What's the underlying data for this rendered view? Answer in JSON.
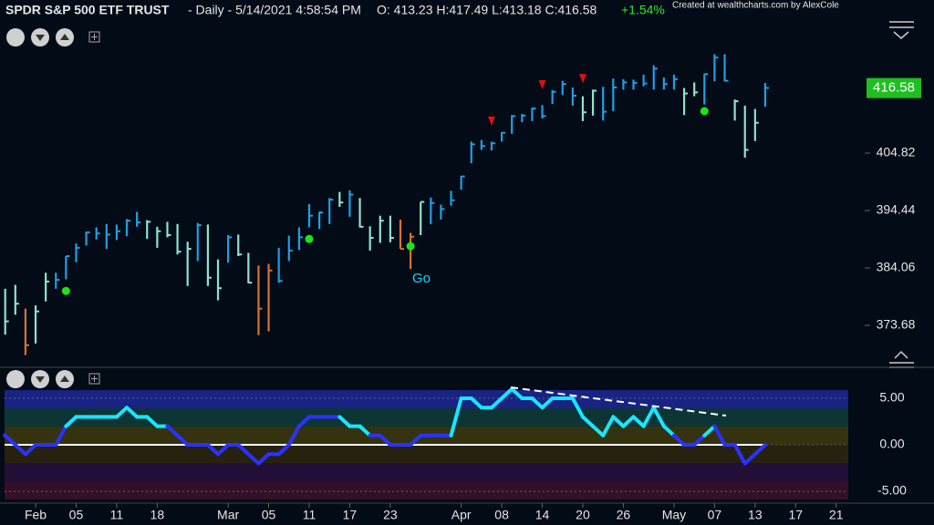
{
  "chart_data": [
    {
      "type": "ohlc",
      "title": "SPDR S&P 500 ETF TRUST",
      "subtitle": "- Daily - 5/14/2021 4:58:54 PM",
      "quote": "O: 413.23 H:417.49 L:413.18 C:416.58",
      "change": "+1.54%",
      "credit": "Created at wealthcharts.com by AlexCole",
      "annotation": "Go",
      "high": [
        380.3,
        381.0,
        376.7,
        377.3,
        383.2,
        383.2,
        386.2,
        388.5,
        390.6,
        391.4,
        392.0,
        391.9,
        392.9,
        394.2,
        392.7,
        391.5,
        392.4,
        392.0,
        388.8,
        392.2,
        391.9,
        385.6,
        390.0,
        390.1,
        386.8,
        384.5,
        384.8,
        387.7,
        389.9,
        391.4,
        395.6,
        394.2,
        396.7,
        397.8,
        398.1,
        396.7,
        391.6,
        393.5,
        393.5,
        392.8,
        390.4,
        396.0,
        396.8,
        395.5,
        398.0,
        400.7,
        406.9,
        407.2,
        406.9,
        408.6,
        411.7,
        411.9,
        413.0,
        413.5,
        416.2,
        417.9,
        416.7,
        415.1,
        416.3,
        416.8,
        418.3,
        418.2,
        418.1,
        419.0,
        420.7,
        418.5,
        419.0,
        416.6,
        417.6,
        419.2,
        422.7,
        422.7,
        414.5,
        413.4,
        412.8,
        417.5
      ],
      "low": [
        372.0,
        375.6,
        368.3,
        370.4,
        378.0,
        380.3,
        382.0,
        385.1,
        388.1,
        389.2,
        387.5,
        389.1,
        389.8,
        391.5,
        389.3,
        387.7,
        389.6,
        386.5,
        380.8,
        385.3,
        380.8,
        378.2,
        385.0,
        386.2,
        381.3,
        371.9,
        372.6,
        381.4,
        385.3,
        387.3,
        391.4,
        391.1,
        392.0,
        395.1,
        393.3,
        391.4,
        387.2,
        388.6,
        388.7,
        387.5,
        383.9,
        390.0,
        392.0,
        392.8,
        395.3,
        398.2,
        403.0,
        405.4,
        405.3,
        406.9,
        408.3,
        410.4,
        410.6,
        411.1,
        413.7,
        415.3,
        413.4,
        410.6,
        411.6,
        410.7,
        412.4,
        416.3,
        416.3,
        416.9,
        416.3,
        416.3,
        416.3,
        411.7,
        415.1,
        413.6,
        417.8,
        417.8,
        410.7,
        404.0,
        407.0,
        413.2
      ],
      "close": [
        374.4,
        377.6,
        370.1,
        376.2,
        381.6,
        381.9,
        386.2,
        387.7,
        390.5,
        390.3,
        390.1,
        390.7,
        392.6,
        392.3,
        392.4,
        390.7,
        390.0,
        387.0,
        387.5,
        391.8,
        382.3,
        380.4,
        389.6,
        386.5,
        381.4,
        376.7,
        383.6,
        381.7,
        387.2,
        389.6,
        393.5,
        394.1,
        396.4,
        395.9,
        397.3,
        391.5,
        389.5,
        392.6,
        389.5,
        387.5,
        389.7,
        396.0,
        395.8,
        394.7,
        396.3,
        400.6,
        406.4,
        406.1,
        406.6,
        408.5,
        411.5,
        411.6,
        412.9,
        411.5,
        415.9,
        417.3,
        415.2,
        412.2,
        416.1,
        412.3,
        416.7,
        417.6,
        417.5,
        417.4,
        420.1,
        417.3,
        418.2,
        415.6,
        415.8,
        419.1,
        422.1,
        417.9,
        414.2,
        405.4,
        410.3,
        416.6
      ],
      "bar_colors": [
        "#8fe3cf",
        "#8fe3cf",
        "#d9732a",
        "#8fe3cf",
        "#8fe3cf",
        "#1e9fe6",
        "#1e9fe6",
        "#1e9fe6",
        "#1e9fe6",
        "#1e9fe6",
        "#1e9fe6",
        "#1e9fe6",
        "#1e9fe6",
        "#1e9fe6",
        "#8fe3cf",
        "#8fe3cf",
        "#8fe3cf",
        "#8fe3cf",
        "#8fe3cf",
        "#1e9fe6",
        "#8fe3cf",
        "#8fe3cf",
        "#1e9fe6",
        "#8fe3cf",
        "#8fe3cf",
        "#d9732a",
        "#d9732a",
        "#1e9fe6",
        "#1e9fe6",
        "#1e9fe6",
        "#1e9fe6",
        "#1e9fe6",
        "#1e9fe6",
        "#8fe3cf",
        "#1e9fe6",
        "#8fe3cf",
        "#8fe3cf",
        "#8fe3cf",
        "#8fe3cf",
        "#d9732a",
        "#d9732a",
        "#8fe3cf",
        "#1e9fe6",
        "#1e9fe6",
        "#1e9fe6",
        "#1e9fe6",
        "#1e9fe6",
        "#1e9fe6",
        "#1e9fe6",
        "#1e9fe6",
        "#1e9fe6",
        "#1e9fe6",
        "#1e9fe6",
        "#1e9fe6",
        "#1e9fe6",
        "#1e9fe6",
        "#1e9fe6",
        "#8fe3cf",
        "#8fe3cf",
        "#1e9fe6",
        "#1e9fe6",
        "#1e9fe6",
        "#1e9fe6",
        "#1e9fe6",
        "#1e9fe6",
        "#1e9fe6",
        "#1e9fe6",
        "#8fe3cf",
        "#8fe3cf",
        "#1e9fe6",
        "#1e9fe6",
        "#1e9fe6",
        "#8fe3cf",
        "#8fe3cf",
        "#8fe3cf",
        "#1e9fe6"
      ],
      "go_signals": {
        "bars": [
          6,
          30,
          40,
          69
        ],
        "values": [
          379.9,
          389.3,
          388.0,
          412.4
        ],
        "color": "#19e619"
      },
      "countertrend_signals": {
        "bars": [
          48,
          53,
          57
        ],
        "values": [
          410.6,
          417.2,
          418.3
        ],
        "color": "#e01010"
      },
      "last_price": 416.58,
      "last_price_color": "#1fbf1f",
      "ylim": [
        366.26,
        432.5
      ],
      "yticks": [
        373.68,
        384.06,
        394.44,
        404.82
      ]
    },
    {
      "type": "line",
      "values": [
        1,
        0,
        -1,
        0,
        0,
        0,
        2,
        3,
        3,
        3,
        3,
        3,
        4,
        3,
        3,
        2,
        2,
        1,
        0,
        0,
        0,
        -1,
        0,
        0,
        -1,
        -2,
        -1,
        -1,
        0,
        2,
        3,
        3,
        3,
        3,
        2,
        2,
        1,
        1,
        0,
        0,
        0,
        1,
        1,
        1,
        1,
        5,
        5,
        4,
        4,
        5,
        6,
        5,
        5,
        4,
        5,
        5,
        5,
        3,
        2,
        1,
        3,
        2,
        3,
        2,
        4,
        2,
        1,
        0,
        0,
        1,
        2,
        0,
        0,
        -2,
        -1,
        0
      ],
      "point_colors": [
        "#2a32ff",
        "#2a32ff",
        "#2a32ff",
        "#2a32ff",
        "#2a32ff",
        "#2a32ff",
        "#2a32ff",
        "#19e6ff",
        "#19e6ff",
        "#19e6ff",
        "#19e6ff",
        "#19e6ff",
        "#19e6ff",
        "#19e6ff",
        "#19e6ff",
        "#19e6ff",
        "#19e6ff",
        "#2a32ff",
        "#2a32ff",
        "#2a32ff",
        "#2a32ff",
        "#2a32ff",
        "#2a32ff",
        "#2a32ff",
        "#2a32ff",
        "#2a32ff",
        "#2a32ff",
        "#2a32ff",
        "#2a32ff",
        "#2a32ff",
        "#2a32ff",
        "#2a32ff",
        "#2a32ff",
        "#2a32ff",
        "#19e6ff",
        "#19e6ff",
        "#19e6ff",
        "#2a32ff",
        "#2a32ff",
        "#2a32ff",
        "#2a32ff",
        "#2a32ff",
        "#2a32ff",
        "#2a32ff",
        "#2a32ff",
        "#19e6ff",
        "#19e6ff",
        "#19e6ff",
        "#19e6ff",
        "#19e6ff",
        "#19e6ff",
        "#19e6ff",
        "#19e6ff",
        "#19e6ff",
        "#19e6ff",
        "#19e6ff",
        "#19e6ff",
        "#19e6ff",
        "#19e6ff",
        "#19e6ff",
        "#19e6ff",
        "#19e6ff",
        "#19e6ff",
        "#19e6ff",
        "#19e6ff",
        "#19e6ff",
        "#19e6ff",
        "#2a32ff",
        "#2a32ff",
        "#2a32ff",
        "#19e6ff",
        "#2a32ff",
        "#2a32ff",
        "#2a32ff",
        "#2a32ff",
        "#2a32ff"
      ],
      "bands": [
        {
          "from": 5.88,
          "to": 3.92,
          "color": "#1b2690"
        },
        {
          "from": 3.92,
          "to": 1.96,
          "color": "#0e3a3a"
        },
        {
          "from": 1.96,
          "to": 0,
          "color": "#3a360e"
        },
        {
          "from": 0,
          "to": -1.96,
          "color": "#2b2510"
        },
        {
          "from": -1.96,
          "to": -3.92,
          "color": "#26103c"
        },
        {
          "from": -3.92,
          "to": -5.88,
          "color": "#3a0f2a"
        }
      ],
      "ylim": [
        -6.27,
        8.33
      ],
      "yticks": [
        {
          "value": 5,
          "label": "5.00"
        },
        {
          "value": 0,
          "label": "0.00"
        },
        {
          "value": -5,
          "label": "-5.00"
        }
      ],
      "xticks": [
        {
          "value": 3,
          "label": "Feb"
        },
        {
          "value": 7,
          "label": "05"
        },
        {
          "value": 11,
          "label": "11"
        },
        {
          "value": 15,
          "label": "18"
        },
        {
          "value": 22,
          "label": "Mar"
        },
        {
          "value": 26,
          "label": "05"
        },
        {
          "value": 30,
          "label": "11"
        },
        {
          "value": 34,
          "label": "17"
        },
        {
          "value": 38,
          "label": "23"
        },
        {
          "value": 45,
          "label": "Apr"
        },
        {
          "value": 49,
          "label": "08"
        },
        {
          "value": 53,
          "label": "14"
        },
        {
          "value": 57,
          "label": "20"
        },
        {
          "value": 61,
          "label": "26"
        },
        {
          "value": 66,
          "label": "May"
        },
        {
          "value": 70,
          "label": "07"
        },
        {
          "value": 74,
          "label": "13"
        },
        {
          "value": 78,
          "label": "17"
        },
        {
          "value": 82,
          "label": "21"
        }
      ]
    }
  ]
}
